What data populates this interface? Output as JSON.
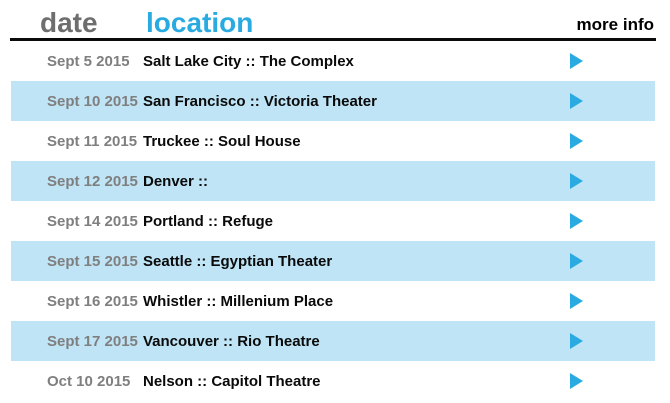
{
  "header": {
    "date_label": "date",
    "location_label": "location",
    "more_info_label": "more info"
  },
  "colors": {
    "accent_blue": "#29abe2",
    "row_highlight": "#bee4f5",
    "header_gray": "#6e6e6e",
    "date_gray": "#7f7f7f"
  },
  "icons": {
    "more_info_icon": "play-triangle-right"
  },
  "rows": [
    {
      "date": "Sept 5 2015",
      "location": "Salt Lake City :: The Complex",
      "highlighted": false
    },
    {
      "date": "Sept 10 2015",
      "location": "San Francisco :: Victoria Theater",
      "highlighted": true
    },
    {
      "date": "Sept 11 2015",
      "location": "Truckee :: Soul House",
      "highlighted": false
    },
    {
      "date": "Sept 12 2015",
      "location": "Denver ::",
      "highlighted": true
    },
    {
      "date": "Sept 14 2015",
      "location": "Portland :: Refuge",
      "highlighted": false
    },
    {
      "date": "Sept 15 2015",
      "location": "Seattle :: Egyptian Theater",
      "highlighted": true
    },
    {
      "date": "Sept 16 2015",
      "location": "Whistler :: Millenium Place",
      "highlighted": false
    },
    {
      "date": "Sept 17 2015",
      "location": "Vancouver :: Rio Theatre",
      "highlighted": true
    },
    {
      "date": "Oct 10 2015",
      "location": "Nelson :: Capitol Theatre",
      "highlighted": false
    }
  ]
}
